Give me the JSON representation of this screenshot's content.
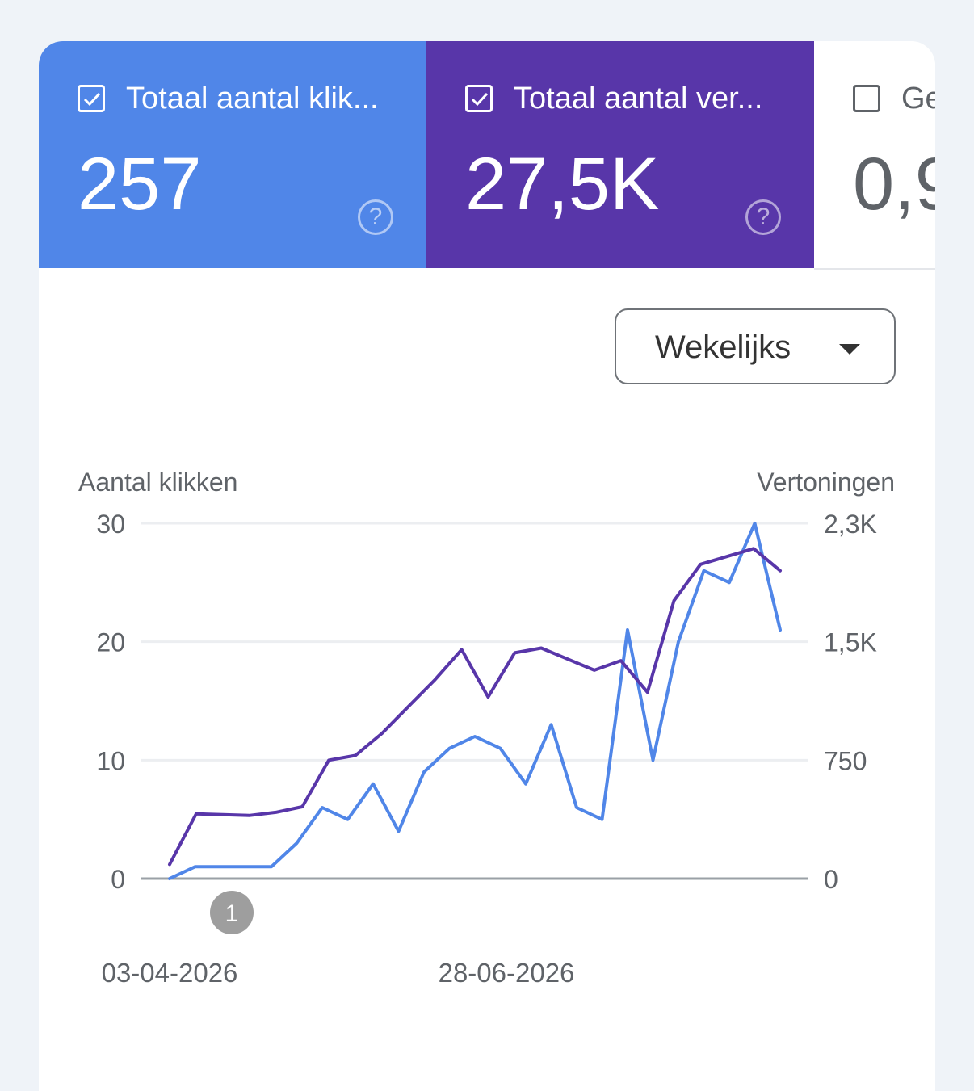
{
  "metrics": [
    {
      "label": "Totaal aantal klik...",
      "value": "257",
      "checked": true,
      "color": "#5086e8"
    },
    {
      "label": "Totaal aantal ver...",
      "value": "27,5K",
      "checked": true,
      "color": "#5836a9"
    },
    {
      "label": "Ge",
      "value": "0,9",
      "checked": false
    }
  ],
  "help_glyph": "?",
  "dropdown": {
    "label": "Wekelijks"
  },
  "chart_data": {
    "type": "line",
    "left_axis_label": "Aantal klikken",
    "right_axis_label": "Vertoningen",
    "left_ticks": [
      "0",
      "10",
      "20",
      "30"
    ],
    "right_ticks": [
      "0",
      "750",
      "1,5K",
      "2,3K"
    ],
    "ylim_left": [
      0,
      30
    ],
    "ylim_right": [
      0,
      2250
    ],
    "x_tick_labels": [
      "03-04-2026",
      "28-06-2026"
    ],
    "annotation": "1",
    "series": [
      {
        "axis": "left",
        "color": "#5086e8",
        "values": [
          0,
          1,
          1,
          1,
          1,
          3,
          6,
          5,
          8,
          4,
          9,
          11,
          12,
          11,
          8,
          13,
          6,
          5,
          21,
          10,
          20,
          26,
          25,
          30,
          21
        ]
      },
      {
        "axis": "right",
        "color": "#5836a9",
        "values": [
          90,
          410,
          405,
          400,
          420,
          455,
          750,
          780,
          920,
          1090,
          1260,
          1450,
          1150,
          1430,
          1460,
          1390,
          1320,
          1380,
          1180,
          1760,
          1990,
          2040,
          2090,
          1950
        ]
      }
    ]
  }
}
